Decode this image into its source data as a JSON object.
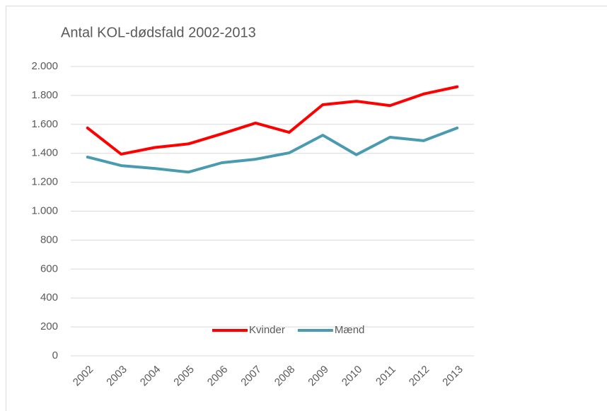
{
  "chart_data": {
    "type": "line",
    "title": "Antal KOL-dødsfald 2002-2013",
    "categories": [
      "2002",
      "2003",
      "2004",
      "2005",
      "2006",
      "2007",
      "2008",
      "2009",
      "2010",
      "2011",
      "2012",
      "2013"
    ],
    "series": [
      {
        "name": "Kvinder",
        "color": "#ff0000",
        "values": [
          1575,
          1394,
          1440,
          1465,
          1535,
          1609,
          1545,
          1736,
          1760,
          1730,
          1810,
          1860
        ]
      },
      {
        "name": "Mænd",
        "color": "#4a9bb0",
        "values": [
          1374,
          1315,
          1295,
          1270,
          1335,
          1359,
          1403,
          1525,
          1390,
          1511,
          1487,
          1575
        ]
      }
    ],
    "ylim": [
      0,
      2000
    ],
    "yticks": [
      0,
      200,
      400,
      600,
      800,
      {
        "value": 1000,
        "label": "1.000"
      },
      {
        "value": 1200,
        "label": "1.200"
      },
      {
        "value": 1400,
        "label": "1.400"
      },
      {
        "value": 1600,
        "label": "1.600"
      },
      {
        "value": 1800,
        "label": "1.800"
      },
      {
        "value": 2000,
        "label": "2.000"
      }
    ],
    "grid": true,
    "legend": "bottom"
  }
}
